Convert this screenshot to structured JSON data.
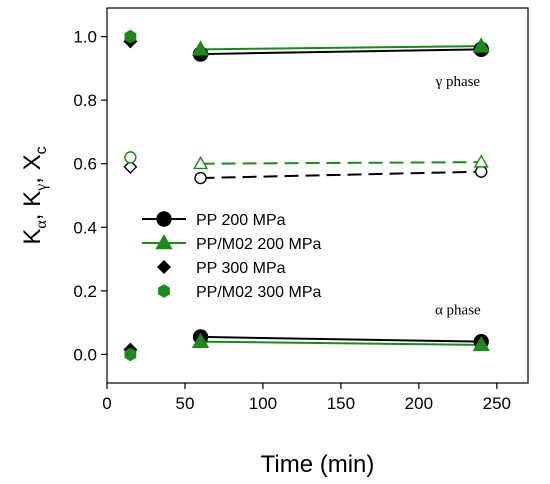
{
  "chart_data": {
    "type": "scatter",
    "xlabel": "Time (min)",
    "ylabel": {
      "base": "K",
      "sub1": "α",
      "sub2": "γ",
      "sub3": "c",
      "sep": ", ",
      "x": "X"
    },
    "xlim": [
      0,
      270
    ],
    "ylim": [
      -0.09,
      1.09
    ],
    "xticks": [
      0,
      50,
      100,
      150,
      200,
      250
    ],
    "yticks": [
      0.0,
      0.2,
      0.4,
      0.6,
      0.8,
      1.0
    ],
    "xtick_labels": [
      "0",
      "50",
      "100",
      "150",
      "200",
      "250"
    ],
    "ytick_labels": [
      "0.0",
      "0.2",
      "0.4",
      "0.6",
      "0.8",
      "1.0"
    ],
    "grid": false,
    "legend_position": "left-middle",
    "annotations": [
      {
        "text": "γ phase",
        "x": 225,
        "y": 0.845
      },
      {
        "text": "α phase",
        "x": 225,
        "y": 0.125
      }
    ],
    "series": [
      {
        "name": "PP 200 MPa",
        "marker": "circle",
        "fill": "filled",
        "line": "solid",
        "color": "#000000",
        "legend": true,
        "points": [
          [
            60,
            0.945
          ],
          [
            240,
            0.96
          ]
        ]
      },
      {
        "name": "PP/M02 200 MPa",
        "marker": "triangle",
        "fill": "filled",
        "line": "solid",
        "color": "#1a8a1a",
        "legend": true,
        "points": [
          [
            60,
            0.96
          ],
          [
            240,
            0.97
          ]
        ]
      },
      {
        "name": "PP 300 MPa",
        "marker": "diamond",
        "fill": "filled",
        "line": "none",
        "color": "#000000",
        "legend": true,
        "points": [
          [
            15,
            0.985
          ]
        ]
      },
      {
        "name": "PP/M02 300 MPa",
        "marker": "hexagon",
        "fill": "filled",
        "line": "none",
        "color": "#1a8a1a",
        "legend": true,
        "points": [
          [
            15,
            1.0
          ]
        ]
      },
      {
        "marker": "circle",
        "fill": "open",
        "line": "dashed",
        "color": "#000000",
        "legend": false,
        "points": [
          [
            60,
            0.555
          ],
          [
            240,
            0.575
          ]
        ]
      },
      {
        "marker": "triangle",
        "fill": "open",
        "line": "dashed",
        "color": "#1a8a1a",
        "legend": false,
        "points": [
          [
            60,
            0.6
          ],
          [
            240,
            0.605
          ]
        ]
      },
      {
        "marker": "diamond",
        "fill": "open",
        "line": "none",
        "color": "#000000",
        "legend": false,
        "points": [
          [
            15,
            0.59
          ]
        ]
      },
      {
        "marker": "circle",
        "fill": "open",
        "line": "none",
        "color": "#1a8a1a",
        "legend": false,
        "points": [
          [
            15,
            0.62
          ]
        ]
      },
      {
        "marker": "circle",
        "fill": "filled",
        "line": "solid",
        "color": "#000000",
        "legend": false,
        "points": [
          [
            60,
            0.055
          ],
          [
            240,
            0.04
          ]
        ]
      },
      {
        "marker": "triangle",
        "fill": "filled",
        "line": "solid",
        "color": "#1a8a1a",
        "legend": false,
        "points": [
          [
            60,
            0.04
          ],
          [
            240,
            0.03
          ]
        ]
      },
      {
        "marker": "diamond",
        "fill": "filled",
        "line": "none",
        "color": "#000000",
        "legend": false,
        "points": [
          [
            15,
            0.015
          ]
        ]
      },
      {
        "marker": "hexagon",
        "fill": "filled",
        "line": "none",
        "color": "#1a8a1a",
        "legend": false,
        "points": [
          [
            15,
            0.0
          ]
        ]
      }
    ]
  }
}
